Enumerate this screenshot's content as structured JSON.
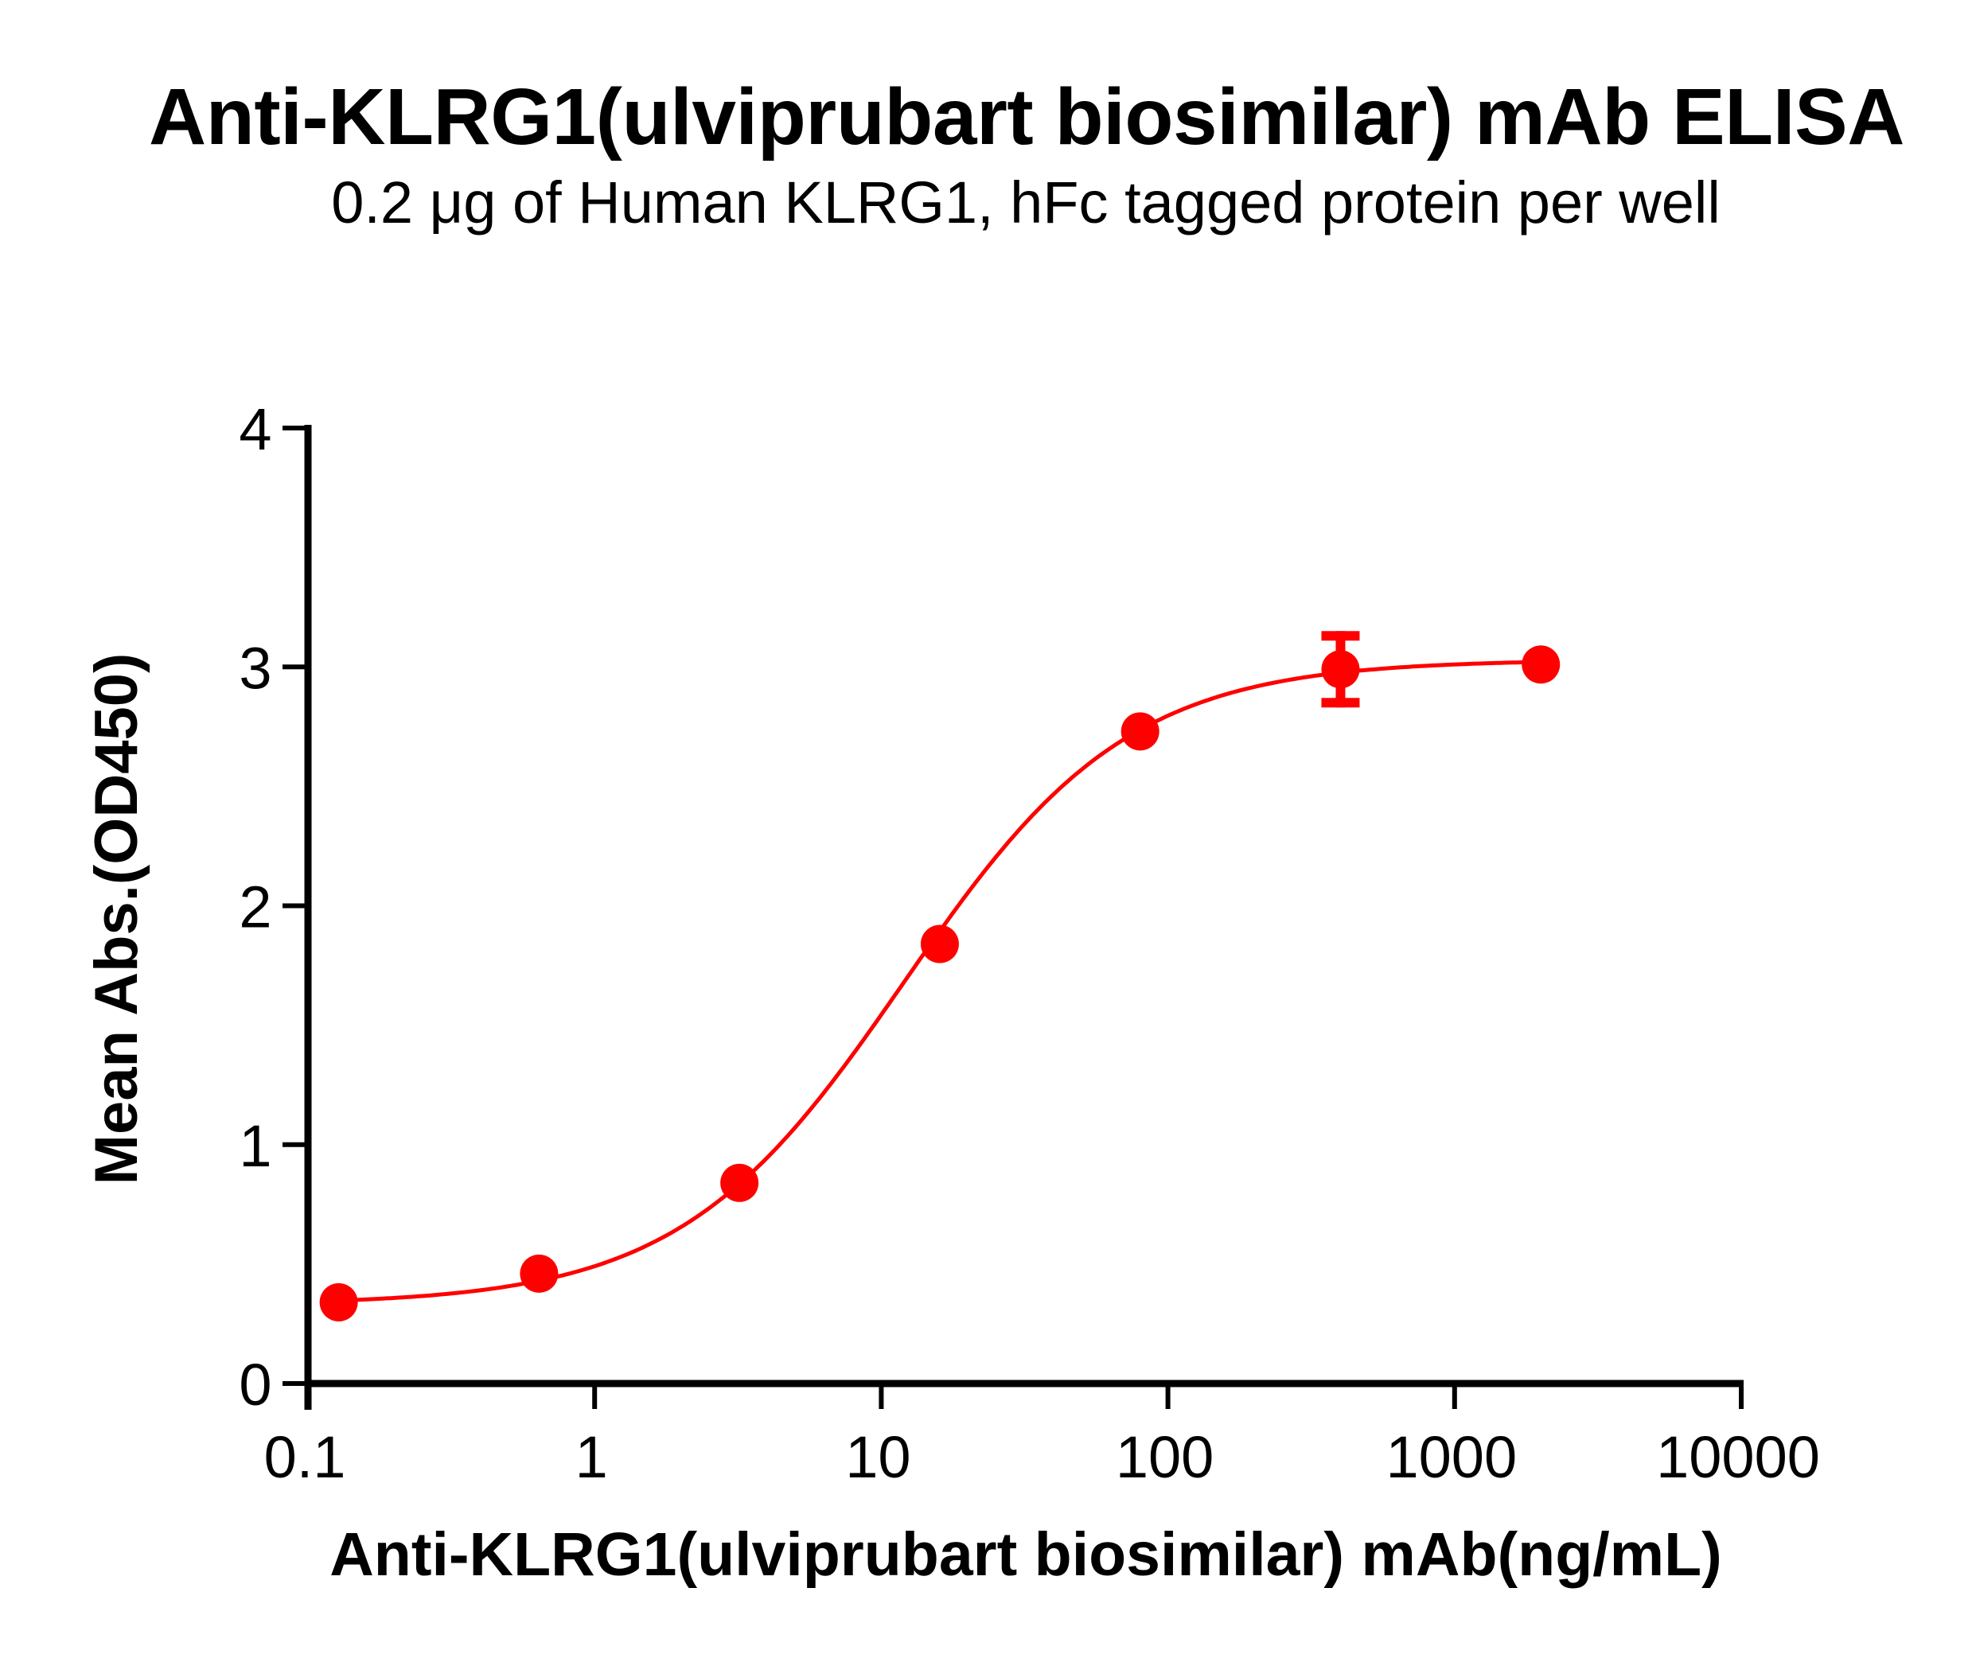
{
  "title": "Anti-KLRG1(ulviprubart biosimilar) mAb ELISA",
  "subtitle": "0.2 μg of Human KLRG1, hFc tagged protein per well",
  "colors": {
    "series": "#FF0000",
    "axis": "#000000",
    "background": "#FFFFFF"
  },
  "chart_data": {
    "type": "scatter",
    "title": "Anti-KLRG1(ulviprubart biosimilar) mAb ELISA",
    "subtitle": "0.2 μg of Human KLRG1, hFc tagged protein per well",
    "xlabel": "Anti-KLRG1(ulviprubart biosimilar) mAb(ng/mL)",
    "ylabel": "Mean Abs.(OD450)",
    "xscale": "log",
    "xlim": [
      0.1,
      10000
    ],
    "ylim": [
      0,
      4
    ],
    "xticks": [
      0.1,
      1,
      10,
      100,
      1000,
      10000
    ],
    "xtick_labels": [
      "0.1",
      "1",
      "10",
      "100",
      "1000",
      "10000"
    ],
    "yticks": [
      0,
      1,
      2,
      3,
      4
    ],
    "ytick_labels": [
      "0",
      "1",
      "2",
      "3",
      "4"
    ],
    "grid": false,
    "legend": null,
    "series": [
      {
        "name": "Anti-KLRG1(ulviprubart biosimilar) mAb",
        "color": "#FF0000",
        "marker": "circle",
        "x": [
          0.128,
          0.64,
          3.2,
          16,
          80,
          400,
          2000
        ],
        "y": [
          0.34,
          0.46,
          0.84,
          1.84,
          2.73,
          2.99,
          3.01
        ],
        "error": [
          0,
          0,
          0,
          0,
          0,
          0.16,
          0
        ],
        "fit": {
          "model": "4PL",
          "bottom": 0.33,
          "top": 3.03,
          "ec50": 12,
          "hill": 1.11,
          "x_range": [
            0.128,
            2000
          ]
        }
      }
    ]
  }
}
